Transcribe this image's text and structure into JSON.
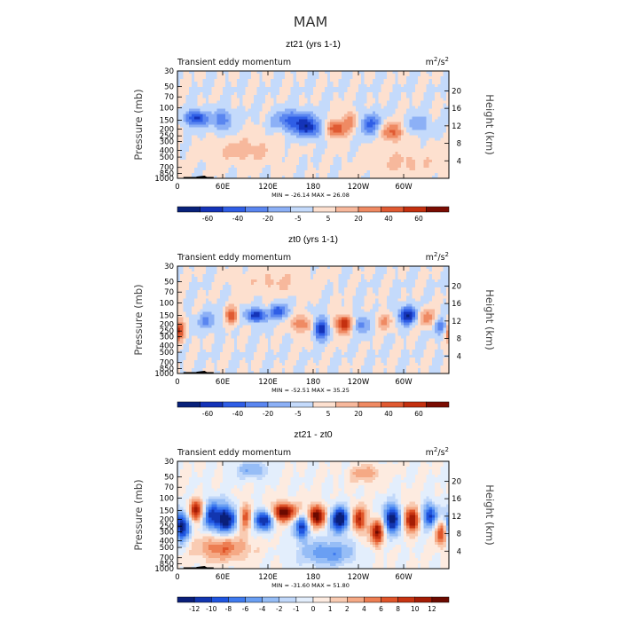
{
  "figure": {
    "title": "MAM"
  },
  "colors": {
    "palette12": [
      "#08217a",
      "#1433b8",
      "#2f5ee6",
      "#5a86f0",
      "#8cb0f6",
      "#c4dafb",
      "#fde0cf",
      "#f7b89c",
      "#ef8a63",
      "#e05a32",
      "#c4300f",
      "#7a0c02"
    ],
    "palette16": [
      "#0a1f7a",
      "#1236b0",
      "#1f55e0",
      "#3f7bef",
      "#6a9ff3",
      "#96bdf6",
      "#c1d8fa",
      "#e3eefc",
      "#fdebe0",
      "#f9cbb2",
      "#f5a985",
      "#ed7e52",
      "#e0552a",
      "#c73412",
      "#a41c05",
      "#6c0a00"
    ]
  },
  "chart_data": [
    {
      "type": "contour",
      "title": "zt21 (yrs 1-1)",
      "left_label": "Transient eddy momentum",
      "right_label_base": "m",
      "right_label_exp": "2",
      "right_label_mid": "/s",
      "right_label_exp2": "2",
      "ylabel": "Pressure (mb)",
      "y2label": "Height (km)",
      "x_ticks": [
        "0",
        "60E",
        "120E",
        "180",
        "120W",
        "60W"
      ],
      "p_ticks": [
        "30",
        "50",
        "70",
        "100",
        "150",
        "200",
        "250",
        "300",
        "400",
        "500",
        "700",
        "850",
        "1000"
      ],
      "h_ticks": [
        "20",
        "16",
        "12",
        "8",
        "4"
      ],
      "min_max": "MIN = -26.14   MAX =  26.08",
      "colorbar_labels": [
        "-60",
        "-40",
        "-20",
        "-5",
        "5",
        "20",
        "40",
        "60"
      ],
      "blobs": [
        {
          "lon": 25,
          "p": 140,
          "v": -0.75,
          "sx": 10,
          "sy": 0.18
        },
        {
          "lon": 60,
          "p": 150,
          "v": -0.45,
          "sx": 10,
          "sy": 0.25
        },
        {
          "lon": 155,
          "p": 150,
          "v": -0.6,
          "sx": 18,
          "sy": 0.22
        },
        {
          "lon": 175,
          "p": 200,
          "v": -0.6,
          "sx": 14,
          "sy": 0.2
        },
        {
          "lon": 210,
          "p": 200,
          "v": 0.7,
          "sx": 10,
          "sy": 0.2
        },
        {
          "lon": 230,
          "p": 150,
          "v": 0.4,
          "sx": 8,
          "sy": 0.2
        },
        {
          "lon": 255,
          "p": 170,
          "v": -0.55,
          "sx": 10,
          "sy": 0.25
        },
        {
          "lon": 285,
          "p": 220,
          "v": 0.55,
          "sx": 10,
          "sy": 0.22
        },
        {
          "lon": 320,
          "p": 170,
          "v": -0.35,
          "sx": 10,
          "sy": 0.2
        },
        {
          "lon": 90,
          "p": 400,
          "v": 0.25,
          "sx": 30,
          "sy": 0.3
        },
        {
          "lon": 300,
          "p": 600,
          "v": 0.2,
          "sx": 35,
          "sy": 0.35
        }
      ]
    },
    {
      "type": "contour",
      "title": "zt0 (yrs 1-1)",
      "left_label": "Transient eddy momentum",
      "right_label_base": "m",
      "right_label_exp": "2",
      "right_label_mid": "/s",
      "right_label_exp2": "2",
      "ylabel": "Pressure (mb)",
      "y2label": "Height (km)",
      "x_ticks": [
        "0",
        "60E",
        "120E",
        "180",
        "120W",
        "60W"
      ],
      "p_ticks": [
        "30",
        "50",
        "70",
        "100",
        "150",
        "200",
        "250",
        "300",
        "400",
        "500",
        "700",
        "850",
        "1000"
      ],
      "h_ticks": [
        "20",
        "16",
        "12",
        "8",
        "4"
      ],
      "min_max": "MIN = -52.51   MAX =  35.25",
      "colorbar_labels": [
        "-60",
        "-40",
        "-20",
        "-5",
        "5",
        "20",
        "40",
        "60"
      ],
      "blobs": [
        {
          "lon": 3,
          "p": 250,
          "v": 0.75,
          "sx": 5,
          "sy": 0.25
        },
        {
          "lon": 40,
          "p": 180,
          "v": -0.35,
          "sx": 10,
          "sy": 0.2
        },
        {
          "lon": 72,
          "p": 150,
          "v": 0.6,
          "sx": 6,
          "sy": 0.2
        },
        {
          "lon": 105,
          "p": 150,
          "v": -0.8,
          "sx": 10,
          "sy": 0.15
        },
        {
          "lon": 135,
          "p": 130,
          "v": -0.6,
          "sx": 8,
          "sy": 0.18
        },
        {
          "lon": 165,
          "p": 200,
          "v": 0.5,
          "sx": 10,
          "sy": 0.2
        },
        {
          "lon": 190,
          "p": 230,
          "v": -0.8,
          "sx": 7,
          "sy": 0.25
        },
        {
          "lon": 220,
          "p": 200,
          "v": 0.8,
          "sx": 8,
          "sy": 0.22
        },
        {
          "lon": 245,
          "p": 200,
          "v": -0.4,
          "sx": 8,
          "sy": 0.22
        },
        {
          "lon": 275,
          "p": 180,
          "v": 0.35,
          "sx": 8,
          "sy": 0.2
        },
        {
          "lon": 305,
          "p": 150,
          "v": -0.85,
          "sx": 9,
          "sy": 0.2
        },
        {
          "lon": 330,
          "p": 160,
          "v": 0.45,
          "sx": 8,
          "sy": 0.2
        },
        {
          "lon": 350,
          "p": 220,
          "v": -0.4,
          "sx": 7,
          "sy": 0.2
        },
        {
          "lon": 130,
          "p": 50,
          "v": 0.2,
          "sx": 30,
          "sy": 0.3
        }
      ]
    },
    {
      "type": "contour",
      "title": "zt21 - zt0",
      "left_label": "Transient eddy momentum",
      "right_label_base": "m",
      "right_label_exp": "2",
      "right_label_mid": "/s",
      "right_label_exp2": "2",
      "ylabel": "Pressure (mb)",
      "y2label": "Height (km)",
      "x_ticks": [
        "0",
        "60E",
        "120E",
        "180",
        "120W",
        "60W"
      ],
      "p_ticks": [
        "30",
        "50",
        "70",
        "100",
        "150",
        "200",
        "250",
        "300",
        "400",
        "500",
        "700",
        "850",
        "1000"
      ],
      "h_ticks": [
        "20",
        "16",
        "12",
        "8",
        "4"
      ],
      "min_max": "MIN = -31.60   MAX =  51.80",
      "colorbar_labels": [
        "-12",
        "-10",
        "-8",
        "-6",
        "-4",
        "-2",
        "-1",
        "0",
        "1",
        "2",
        "4",
        "6",
        "8",
        "10",
        "12"
      ],
      "blobs": [
        {
          "lon": 5,
          "p": 250,
          "v": -1.0,
          "sx": 8,
          "sy": 0.35
        },
        {
          "lon": 25,
          "p": 150,
          "v": 0.8,
          "sx": 8,
          "sy": 0.25
        },
        {
          "lon": 45,
          "p": 180,
          "v": -0.8,
          "sx": 8,
          "sy": 0.35
        },
        {
          "lon": 65,
          "p": 200,
          "v": -1.0,
          "sx": 9,
          "sy": 0.35
        },
        {
          "lon": 90,
          "p": 180,
          "v": 0.6,
          "sx": 6,
          "sy": 0.3
        },
        {
          "lon": 115,
          "p": 200,
          "v": -1.0,
          "sx": 10,
          "sy": 0.25
        },
        {
          "lon": 140,
          "p": 160,
          "v": 1.0,
          "sx": 14,
          "sy": 0.22
        },
        {
          "lon": 165,
          "p": 250,
          "v": -0.8,
          "sx": 8,
          "sy": 0.3
        },
        {
          "lon": 185,
          "p": 180,
          "v": 1.0,
          "sx": 9,
          "sy": 0.25
        },
        {
          "lon": 215,
          "p": 200,
          "v": -1.0,
          "sx": 10,
          "sy": 0.3
        },
        {
          "lon": 240,
          "p": 200,
          "v": 0.8,
          "sx": 7,
          "sy": 0.3
        },
        {
          "lon": 265,
          "p": 300,
          "v": 0.9,
          "sx": 7,
          "sy": 0.3
        },
        {
          "lon": 285,
          "p": 200,
          "v": -1.0,
          "sx": 9,
          "sy": 0.35
        },
        {
          "lon": 310,
          "p": 200,
          "v": 0.9,
          "sx": 8,
          "sy": 0.3
        },
        {
          "lon": 335,
          "p": 180,
          "v": -0.8,
          "sx": 8,
          "sy": 0.3
        },
        {
          "lon": 350,
          "p": 300,
          "v": 0.8,
          "sx": 6,
          "sy": 0.3
        },
        {
          "lon": 60,
          "p": 500,
          "v": 0.5,
          "sx": 25,
          "sy": 0.3
        },
        {
          "lon": 200,
          "p": 600,
          "v": -0.5,
          "sx": 25,
          "sy": 0.3
        },
        {
          "lon": 100,
          "p": 40,
          "v": -0.4,
          "sx": 15,
          "sy": 0.2
        },
        {
          "lon": 250,
          "p": 45,
          "v": 0.35,
          "sx": 15,
          "sy": 0.2
        }
      ]
    }
  ]
}
